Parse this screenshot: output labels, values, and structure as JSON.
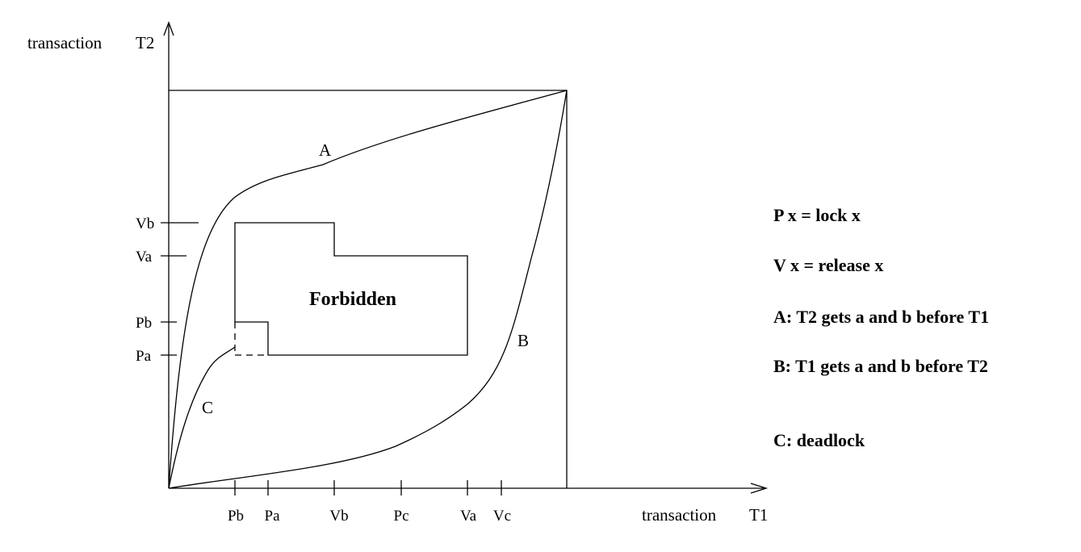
{
  "axes": {
    "x_title_left": "transaction",
    "x_title_right": "T1",
    "y_title_left": "transaction",
    "y_title_right": "T2"
  },
  "x_ticks": [
    "Pb",
    "Pa",
    "Vb",
    "Pc",
    "Va",
    "Vc"
  ],
  "y_ticks": [
    "Vb",
    "Va",
    "Pb",
    "Pa"
  ],
  "region": {
    "label": "Forbidden"
  },
  "curves": {
    "a": "A",
    "b": "B",
    "c": "C"
  },
  "legend": [
    "P x = lock x",
    "V x = release x",
    "A: T2 gets a and b before T1",
    "B: T1 gets a and b before T2",
    "C: deadlock"
  ]
}
